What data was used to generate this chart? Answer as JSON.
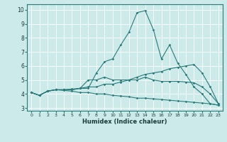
{
  "xlabel": "Humidex (Indice chaleur)",
  "ylabel": "",
  "background_color": "#cceaea",
  "grid_color": "#ffffff",
  "line_color": "#2a7a7a",
  "xlim": [
    -0.5,
    23.5
  ],
  "ylim": [
    2.8,
    10.4
  ],
  "xticks": [
    0,
    1,
    2,
    3,
    4,
    5,
    6,
    7,
    8,
    9,
    10,
    11,
    12,
    13,
    14,
    15,
    16,
    17,
    18,
    19,
    20,
    21,
    22,
    23
  ],
  "yticks": [
    3,
    4,
    5,
    6,
    7,
    8,
    9,
    10
  ],
  "line1_x": [
    0,
    1,
    2,
    3,
    4,
    5,
    6,
    7,
    8,
    9,
    10,
    11,
    12,
    13,
    14,
    15,
    16,
    17,
    18,
    19,
    20,
    21,
    22,
    23
  ],
  "line1_y": [
    4.1,
    3.9,
    4.2,
    4.3,
    4.3,
    4.3,
    4.4,
    4.4,
    5.5,
    6.3,
    6.5,
    7.5,
    8.4,
    9.8,
    9.95,
    8.6,
    6.5,
    7.5,
    6.2,
    5.4,
    4.5,
    4.0,
    3.3,
    3.2
  ],
  "line2_x": [
    0,
    1,
    2,
    3,
    4,
    5,
    6,
    7,
    8,
    9,
    10,
    11,
    12,
    13,
    14,
    15,
    16,
    17,
    18,
    19,
    20,
    21,
    22,
    23
  ],
  "line2_y": [
    4.1,
    3.9,
    4.2,
    4.3,
    4.3,
    4.3,
    4.4,
    5.0,
    5.0,
    5.2,
    5.0,
    5.0,
    5.0,
    5.0,
    5.2,
    5.0,
    4.9,
    4.9,
    4.9,
    4.85,
    4.8,
    4.5,
    4.0,
    3.3
  ],
  "line3_x": [
    0,
    1,
    2,
    3,
    4,
    5,
    6,
    7,
    8,
    9,
    10,
    11,
    12,
    13,
    14,
    15,
    16,
    17,
    18,
    19,
    20,
    21,
    22,
    23
  ],
  "line3_y": [
    4.1,
    3.9,
    4.2,
    4.3,
    4.3,
    4.35,
    4.4,
    4.5,
    4.5,
    4.7,
    4.7,
    4.85,
    5.0,
    5.2,
    5.4,
    5.5,
    5.6,
    5.8,
    5.9,
    6.0,
    6.1,
    5.5,
    4.5,
    3.3
  ],
  "line4_x": [
    0,
    1,
    2,
    3,
    4,
    5,
    6,
    7,
    8,
    9,
    10,
    11,
    12,
    13,
    14,
    15,
    16,
    17,
    18,
    19,
    20,
    21,
    22,
    23
  ],
  "line4_y": [
    4.1,
    3.9,
    4.2,
    4.3,
    4.25,
    4.2,
    4.1,
    4.1,
    4.0,
    4.0,
    3.9,
    3.85,
    3.8,
    3.7,
    3.7,
    3.65,
    3.6,
    3.55,
    3.5,
    3.45,
    3.4,
    3.35,
    3.3,
    3.2
  ]
}
